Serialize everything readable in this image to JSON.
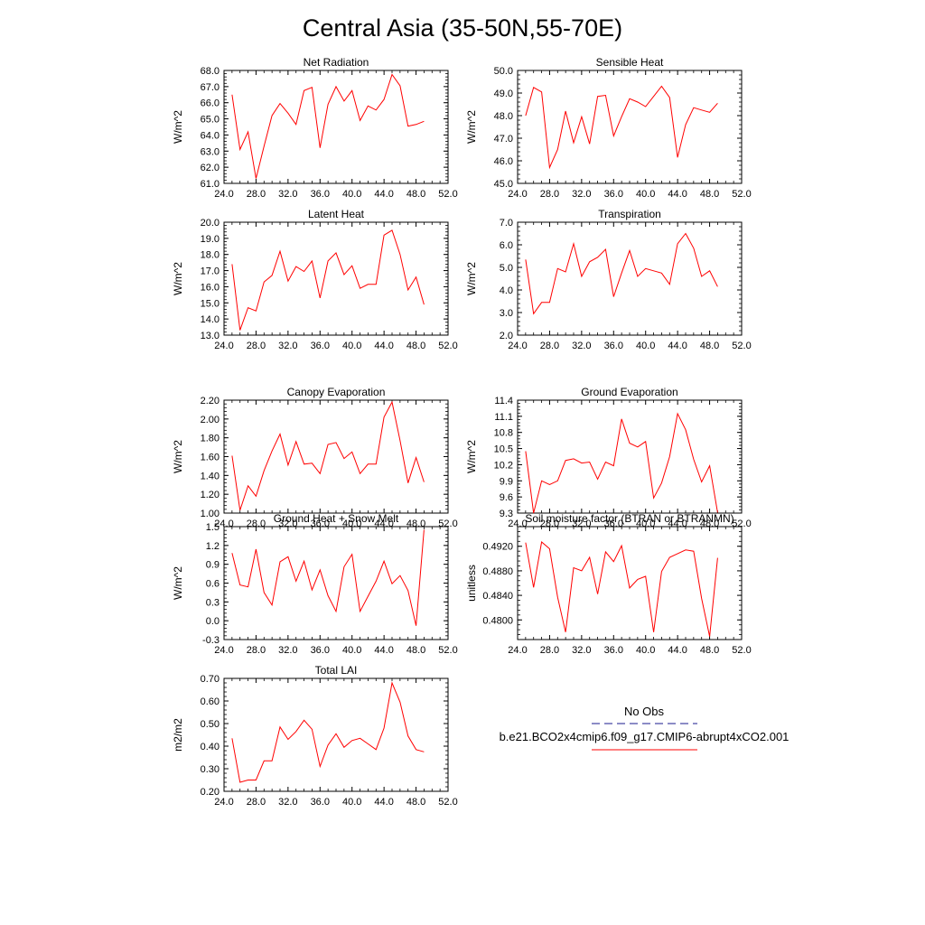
{
  "figure": {
    "title": "Central Asia (35-50N,55-70E)"
  },
  "legend": {
    "obs_label": "No Obs",
    "obs_color": "#1a1a8c",
    "model_label": "b.e21.BCO2x4cmip6.f09_g17.CMIP6-abrupt4xCO2.001",
    "model_color": "#ff0000"
  },
  "chart_data": [
    {
      "type": "line",
      "title": "Net Radiation",
      "ylabel": "W/m^2",
      "xlim": [
        24,
        52
      ],
      "ylim": [
        61,
        68
      ],
      "xticks": [
        "24.0",
        "28.0",
        "32.0",
        "36.0",
        "40.0",
        "44.0",
        "48.0",
        "52.0"
      ],
      "yticks": [
        "61.0",
        "62.0",
        "63.0",
        "64.0",
        "65.0",
        "66.0",
        "67.0",
        "68.0"
      ],
      "series": [
        {
          "color": "#ff0000",
          "x": [
            25,
            26,
            27,
            28,
            29,
            30,
            31,
            32,
            33,
            34,
            35,
            36,
            37,
            38,
            39,
            40,
            41,
            42,
            43,
            44,
            45,
            46,
            47,
            48,
            49
          ],
          "y": [
            66.5,
            63.1,
            64.2,
            61.3,
            63.3,
            65.2,
            65.95,
            65.35,
            64.65,
            66.75,
            66.95,
            63.2,
            65.9,
            67.0,
            66.1,
            66.75,
            64.9,
            65.8,
            65.55,
            66.2,
            67.75,
            67.05,
            64.55,
            64.65,
            64.85
          ]
        }
      ]
    },
    {
      "type": "line",
      "title": "Sensible Heat",
      "ylabel": "W/m^2",
      "xlim": [
        24,
        52
      ],
      "ylim": [
        45,
        50
      ],
      "xticks": [
        "24.0",
        "28.0",
        "32.0",
        "36.0",
        "40.0",
        "44.0",
        "48.0",
        "52.0"
      ],
      "yticks": [
        "45.0",
        "46.0",
        "47.0",
        "48.0",
        "49.0",
        "50.0"
      ],
      "series": [
        {
          "color": "#ff0000",
          "x": [
            25,
            26,
            27,
            28,
            29,
            30,
            31,
            32,
            33,
            34,
            35,
            36,
            37,
            38,
            39,
            40,
            41,
            42,
            43,
            44,
            45,
            46,
            47,
            48,
            49
          ],
          "y": [
            48.0,
            49.25,
            49.05,
            45.7,
            46.5,
            48.2,
            46.8,
            47.95,
            46.75,
            48.85,
            48.9,
            47.1,
            47.95,
            48.75,
            48.6,
            48.4,
            48.85,
            49.3,
            48.8,
            46.15,
            47.6,
            48.35,
            48.25,
            48.15,
            48.55
          ]
        }
      ]
    },
    {
      "type": "line",
      "title": "Latent Heat",
      "ylabel": "W/m^2",
      "xlim": [
        24,
        52
      ],
      "ylim": [
        13,
        20
      ],
      "xticks": [
        "24.0",
        "28.0",
        "32.0",
        "36.0",
        "40.0",
        "44.0",
        "48.0",
        "52.0"
      ],
      "yticks": [
        "13.0",
        "14.0",
        "15.0",
        "16.0",
        "17.0",
        "18.0",
        "19.0",
        "20.0"
      ],
      "series": [
        {
          "color": "#ff0000",
          "x": [
            25,
            26,
            27,
            28,
            29,
            30,
            31,
            32,
            33,
            34,
            35,
            36,
            37,
            38,
            39,
            40,
            41,
            42,
            43,
            44,
            45,
            46,
            47,
            48,
            49
          ],
          "y": [
            17.4,
            13.3,
            14.7,
            14.5,
            16.3,
            16.7,
            18.2,
            16.35,
            17.25,
            16.95,
            17.6,
            15.3,
            17.6,
            18.1,
            16.75,
            17.3,
            15.9,
            16.15,
            16.15,
            19.2,
            19.5,
            18.0,
            15.8,
            16.6,
            14.9
          ]
        }
      ]
    },
    {
      "type": "line",
      "title": "Transpiration",
      "ylabel": "W/m^2",
      "xlim": [
        24,
        52
      ],
      "ylim": [
        2,
        7
      ],
      "xticks": [
        "24.0",
        "28.0",
        "32.0",
        "36.0",
        "40.0",
        "44.0",
        "48.0",
        "52.0"
      ],
      "yticks": [
        "2.0",
        "3.0",
        "4.0",
        "5.0",
        "6.0",
        "7.0"
      ],
      "series": [
        {
          "color": "#ff0000",
          "x": [
            25,
            26,
            27,
            28,
            29,
            30,
            31,
            32,
            33,
            34,
            35,
            36,
            37,
            38,
            39,
            40,
            41,
            42,
            43,
            44,
            45,
            46,
            47,
            48,
            49
          ],
          "y": [
            5.35,
            2.95,
            3.45,
            3.45,
            4.95,
            4.8,
            6.05,
            4.6,
            5.25,
            5.45,
            5.8,
            3.7,
            4.75,
            5.75,
            4.6,
            4.95,
            4.85,
            4.75,
            4.25,
            6.05,
            6.5,
            5.85,
            4.6,
            4.85,
            4.15
          ]
        }
      ]
    },
    {
      "type": "line",
      "title": "Canopy Evaporation",
      "ylabel": "W/m^2",
      "xlim": [
        24,
        52
      ],
      "ylim": [
        1.0,
        2.2
      ],
      "xticks": [
        "24.0",
        "28.0",
        "32.0",
        "36.0",
        "40.0",
        "44.0",
        "48.0",
        "52.0"
      ],
      "yticks": [
        "1.00",
        "1.20",
        "1.40",
        "1.60",
        "1.80",
        "2.00",
        "2.20"
      ],
      "series": [
        {
          "color": "#ff0000",
          "x": [
            25,
            26,
            27,
            28,
            29,
            30,
            31,
            32,
            33,
            34,
            35,
            36,
            37,
            38,
            39,
            40,
            41,
            42,
            43,
            44,
            45,
            46,
            47,
            48,
            49
          ],
          "y": [
            1.61,
            1.03,
            1.29,
            1.18,
            1.45,
            1.66,
            1.84,
            1.51,
            1.76,
            1.52,
            1.53,
            1.42,
            1.73,
            1.75,
            1.58,
            1.65,
            1.42,
            1.52,
            1.52,
            2.02,
            2.18,
            1.77,
            1.32,
            1.59,
            1.33
          ]
        }
      ]
    },
    {
      "type": "line",
      "title": "Ground Evaporation",
      "ylabel": "W/m^2",
      "xlim": [
        24,
        52
      ],
      "ylim": [
        9.3,
        11.4
      ],
      "xticks": [
        "24.0",
        "28.0",
        "32.0",
        "36.0",
        "40.0",
        "44.0",
        "48.0",
        "52.0"
      ],
      "yticks": [
        "9.3",
        "9.6",
        "9.9",
        "10.2",
        "10.5",
        "10.8",
        "11.1",
        "11.4"
      ],
      "series": [
        {
          "color": "#ff0000",
          "x": [
            25,
            26,
            27,
            28,
            29,
            30,
            31,
            32,
            33,
            34,
            35,
            36,
            37,
            38,
            39,
            40,
            41,
            42,
            43,
            44,
            45,
            46,
            47,
            48,
            49
          ],
          "y": [
            10.45,
            9.3,
            9.9,
            9.83,
            9.9,
            10.28,
            10.31,
            10.23,
            10.25,
            9.93,
            10.25,
            10.18,
            11.05,
            10.6,
            10.53,
            10.63,
            9.58,
            9.86,
            10.35,
            11.15,
            10.85,
            10.3,
            9.88,
            10.18,
            9.31
          ]
        }
      ]
    },
    {
      "type": "line",
      "title": "Ground Heat + Snow Melt",
      "ylabel": "W/m^2",
      "xlim": [
        24,
        52
      ],
      "ylim": [
        -0.3,
        1.5
      ],
      "xticks": [
        "24.0",
        "28.0",
        "32.0",
        "36.0",
        "40.0",
        "44.0",
        "48.0",
        "52.0"
      ],
      "yticks": [
        "-0.3",
        "0.0",
        "0.3",
        "0.6",
        "0.9",
        "1.2",
        "1.5"
      ],
      "series": [
        {
          "color": "#ff0000",
          "x": [
            25,
            26,
            27,
            28,
            29,
            30,
            31,
            32,
            33,
            34,
            35,
            36,
            37,
            38,
            39,
            40,
            41,
            42,
            43,
            44,
            45,
            46,
            47,
            48,
            49
          ],
          "y": [
            1.08,
            0.57,
            0.54,
            1.14,
            0.45,
            0.25,
            0.94,
            1.02,
            0.63,
            0.95,
            0.49,
            0.81,
            0.4,
            0.15,
            0.86,
            1.06,
            0.15,
            0.39,
            0.63,
            0.95,
            0.59,
            0.72,
            0.48,
            -0.08,
            1.45
          ]
        }
      ]
    },
    {
      "type": "line",
      "title": "Soil moisture factor (BTRAN or BTRANMN)",
      "ylabel": "unitless",
      "xlim": [
        24,
        52
      ],
      "ylim": [
        0.4768,
        0.4952
      ],
      "xticks": [
        "24.0",
        "28.0",
        "32.0",
        "36.0",
        "40.0",
        "44.0",
        "48.0",
        "52.0"
      ],
      "yticks": [
        "0.4800",
        "0.4840",
        "0.4880",
        "0.4920"
      ],
      "series": [
        {
          "color": "#ff0000",
          "x": [
            25,
            26,
            27,
            28,
            29,
            30,
            31,
            32,
            33,
            34,
            35,
            36,
            37,
            38,
            39,
            40,
            41,
            42,
            43,
            44,
            45,
            46,
            47,
            48,
            49
          ],
          "y": [
            0.4926,
            0.4853,
            0.4927,
            0.4916,
            0.4837,
            0.478,
            0.4885,
            0.488,
            0.4902,
            0.4842,
            0.4911,
            0.4895,
            0.4921,
            0.4852,
            0.4866,
            0.4871,
            0.478,
            0.4879,
            0.4902,
            0.4908,
            0.4914,
            0.4912,
            0.4835,
            0.4773,
            0.4901
          ]
        }
      ]
    },
    {
      "type": "line",
      "title": "Total LAI",
      "ylabel": "m2/m2",
      "xlim": [
        24,
        52
      ],
      "ylim": [
        0.2,
        0.7
      ],
      "xticks": [
        "24.0",
        "28.0",
        "32.0",
        "36.0",
        "40.0",
        "44.0",
        "48.0",
        "52.0"
      ],
      "yticks": [
        "0.20",
        "0.30",
        "0.40",
        "0.50",
        "0.60",
        "0.70"
      ],
      "series": [
        {
          "color": "#ff0000",
          "x": [
            25,
            26,
            27,
            28,
            29,
            30,
            31,
            32,
            33,
            34,
            35,
            36,
            37,
            38,
            39,
            40,
            41,
            42,
            43,
            44,
            45,
            46,
            47,
            48,
            49
          ],
          "y": [
            0.435,
            0.24,
            0.25,
            0.25,
            0.335,
            0.335,
            0.485,
            0.43,
            0.465,
            0.515,
            0.475,
            0.31,
            0.405,
            0.455,
            0.395,
            0.425,
            0.435,
            0.41,
            0.385,
            0.48,
            0.68,
            0.595,
            0.445,
            0.385,
            0.375
          ]
        }
      ]
    }
  ]
}
